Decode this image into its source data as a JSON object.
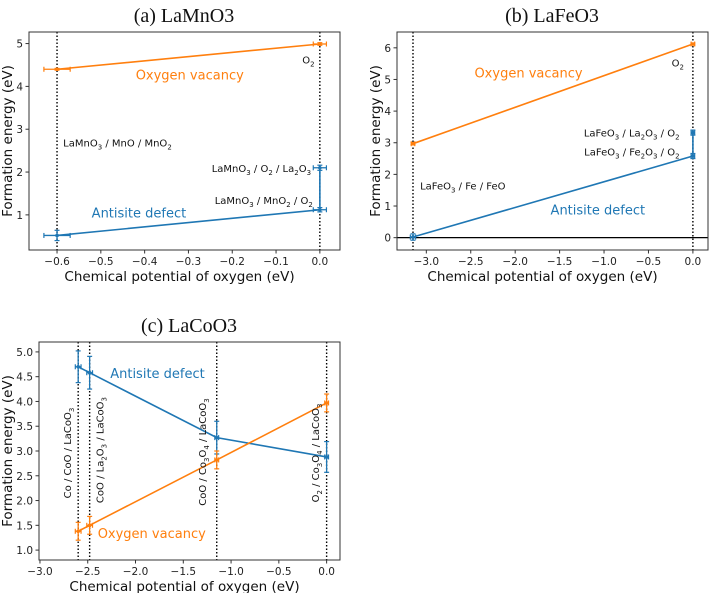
{
  "colors": {
    "oxygen_vacancy": "#ff7f0e",
    "antisite_defect": "#1f77b4"
  },
  "chart_data": [
    {
      "type": "line",
      "title": "(a) LaMnO3",
      "xlabel": "Chemical potential of oxygen (eV)",
      "ylabel": "Formation energy (eV)",
      "xlim": [
        -0.664,
        0.046
      ],
      "ylim": [
        0.18,
        5.27
      ],
      "xticks": [
        -0.6,
        -0.5,
        -0.4,
        -0.3,
        -0.2,
        -0.1,
        0.0
      ],
      "xtick_labels": [
        "−0.6",
        "−0.5",
        "−0.4",
        "−0.3",
        "−0.2",
        "−0.1",
        "0.0"
      ],
      "yticks": [
        1,
        2,
        3,
        4,
        5
      ],
      "ytick_labels": [
        "1",
        "2",
        "3",
        "4",
        "5"
      ],
      "vlines": [
        -0.6,
        0.0
      ],
      "hlines": [],
      "series": [
        {
          "name": "Oxygen vacancy",
          "color_key": "oxygen_vacancy",
          "x": [
            -0.6,
            0.0
          ],
          "y": [
            4.4,
            4.99
          ],
          "xerr": [
            0.03,
            0.015
          ],
          "yerr": [
            0.02,
            0.03
          ]
        },
        {
          "name": "Antisite defect",
          "color_key": "antisite_defect",
          "x": [
            -0.6,
            0.0,
            0.0
          ],
          "y": [
            0.52,
            1.12,
            2.1
          ],
          "xerr": [
            0.03,
            0.015,
            0.015
          ],
          "yerr": [
            0.12,
            0.05,
            0.06
          ]
        }
      ],
      "annotations": [
        {
          "text": "O2",
          "x": -0.012,
          "y": 4.62,
          "ha": "end"
        },
        {
          "text": "Oxygen vacancy",
          "x": -0.297,
          "y": 4.27,
          "ha": "middle",
          "color_key": "oxygen_vacancy",
          "kind": "series"
        },
        {
          "text": "LaMnO3 / MnO / MnO2",
          "x": -0.586,
          "y": 2.68,
          "ha": "start"
        },
        {
          "text": "LaMnO3 / O2 / La2O3",
          "x": -0.02,
          "y": 2.08,
          "ha": "end"
        },
        {
          "text": "LaMnO3 / MnO2 / O2",
          "x": -0.016,
          "y": 1.34,
          "ha": "end"
        },
        {
          "text": "Antisite defect",
          "x": -0.413,
          "y": 1.05,
          "ha": "middle",
          "color_key": "antisite_defect",
          "kind": "series"
        }
      ]
    },
    {
      "type": "line",
      "title": "(b) LaFeO3",
      "xlabel": "Chemical potential of oxygen (eV)",
      "ylabel": "Formation energy (eV)",
      "xlim": [
        -3.33,
        0.17
      ],
      "ylim": [
        -0.39,
        6.5
      ],
      "xticks": [
        -3.0,
        -2.5,
        -2.0,
        -1.5,
        -1.0,
        -0.5,
        0.0
      ],
      "xtick_labels": [
        "−3.0",
        "−2.5",
        "−2.0",
        "−1.5",
        "−1.0",
        "−0.5",
        "0.0"
      ],
      "yticks": [
        0,
        1,
        2,
        3,
        4,
        5,
        6
      ],
      "ytick_labels": [
        "0",
        "1",
        "2",
        "3",
        "4",
        "5",
        "6"
      ],
      "vlines": [
        -3.15,
        0.0
      ],
      "hlines": [
        0
      ],
      "series": [
        {
          "name": "Oxygen vacancy",
          "color_key": "oxygen_vacancy",
          "x": [
            -3.15,
            0.0
          ],
          "y": [
            2.97,
            6.12
          ],
          "xerr": [
            0.02,
            0.02
          ],
          "yerr": [
            0.03,
            0.03
          ]
        },
        {
          "name": "Antisite defect",
          "color_key": "antisite_defect",
          "x": [
            -3.15,
            0.0,
            0.0
          ],
          "y": [
            0.02,
            2.58,
            3.32
          ],
          "xerr": [
            0.03,
            0.02,
            0.02
          ],
          "yerr": [
            0.1,
            0.08,
            0.08
          ]
        }
      ],
      "annotations": [
        {
          "text": "O2",
          "x": -0.1,
          "y": 5.52,
          "ha": "end"
        },
        {
          "text": "Oxygen vacancy",
          "x": -1.85,
          "y": 5.2,
          "ha": "middle",
          "color_key": "oxygen_vacancy",
          "kind": "series"
        },
        {
          "text": "LaFeO3 / La2O3 / O2",
          "x": -0.15,
          "y": 3.3,
          "ha": "end"
        },
        {
          "text": "LaFeO3 / Fe2O3 / O2",
          "x": -0.15,
          "y": 2.7,
          "ha": "end"
        },
        {
          "text": "LaFeO3 / Fe / FeO",
          "x": -3.07,
          "y": 1.63,
          "ha": "start"
        },
        {
          "text": "Antisite defect",
          "x": -1.07,
          "y": 0.87,
          "ha": "middle",
          "color_key": "antisite_defect",
          "kind": "series"
        }
      ]
    },
    {
      "type": "line",
      "title": "(c) LaCoO3",
      "xlabel": "Chemical potential of oxygen (eV)",
      "ylabel": "Formation energy (eV)",
      "xlim": [
        -3.01,
        0.14
      ],
      "ylim": [
        0.8,
        5.2
      ],
      "xticks": [
        -3.0,
        -2.5,
        -2.0,
        -1.5,
        -1.0,
        -0.5,
        0.0
      ],
      "xtick_labels": [
        "−3.0",
        "−2.5",
        "−2.0",
        "−1.5",
        "−1.0",
        "−0.5",
        "0.0"
      ],
      "yticks": [
        1.0,
        1.5,
        2.0,
        2.5,
        3.0,
        3.5,
        4.0,
        4.5,
        5.0
      ],
      "ytick_labels": [
        "1.0",
        "1.5",
        "2.0",
        "2.5",
        "3.0",
        "3.5",
        "4.0",
        "4.5",
        "5.0"
      ],
      "vlines": [
        -2.6,
        -2.48,
        -1.15,
        0.0
      ],
      "hlines": [],
      "series": [
        {
          "name": "Antisite defect",
          "color_key": "antisite_defect",
          "x": [
            -2.6,
            -2.48,
            -1.15,
            0.0
          ],
          "y": [
            4.7,
            4.58,
            3.27,
            2.88
          ],
          "xerr": [
            0.03,
            0.03,
            0.02,
            0.02
          ],
          "yerr": [
            0.32,
            0.33,
            0.33,
            0.31
          ]
        },
        {
          "name": "Oxygen vacancy",
          "color_key": "oxygen_vacancy",
          "x": [
            -2.6,
            -2.48,
            -1.15,
            0.0
          ],
          "y": [
            1.38,
            1.5,
            2.82,
            3.97
          ],
          "xerr": [
            0.03,
            0.03,
            0.02,
            0.02
          ],
          "yerr": [
            0.18,
            0.18,
            0.18,
            0.18
          ]
        }
      ],
      "annotations": [
        {
          "text": "Co / CoO / LaCoO3",
          "x": -2.71,
          "y": 2.96,
          "ha": "middle",
          "rotation": -90
        },
        {
          "text": "CoO / La2O3 / LaCoO3",
          "x": -2.37,
          "y": 3.02,
          "ha": "middle",
          "rotation": -90
        },
        {
          "text": "CoO / Co3O4 / LaCoO3",
          "x": -1.3,
          "y": 2.98,
          "ha": "middle",
          "rotation": -90
        },
        {
          "text": "O2 / Co3O4 / LaCoO3",
          "x": -0.115,
          "y": 2.96,
          "ha": "middle",
          "rotation": -90
        },
        {
          "text": "Antisite defect",
          "x": -1.77,
          "y": 4.57,
          "ha": "middle",
          "color_key": "antisite_defect",
          "kind": "series"
        },
        {
          "text": "Oxygen vacancy",
          "x": -1.83,
          "y": 1.34,
          "ha": "middle",
          "color_key": "oxygen_vacancy",
          "kind": "series"
        }
      ]
    }
  ]
}
